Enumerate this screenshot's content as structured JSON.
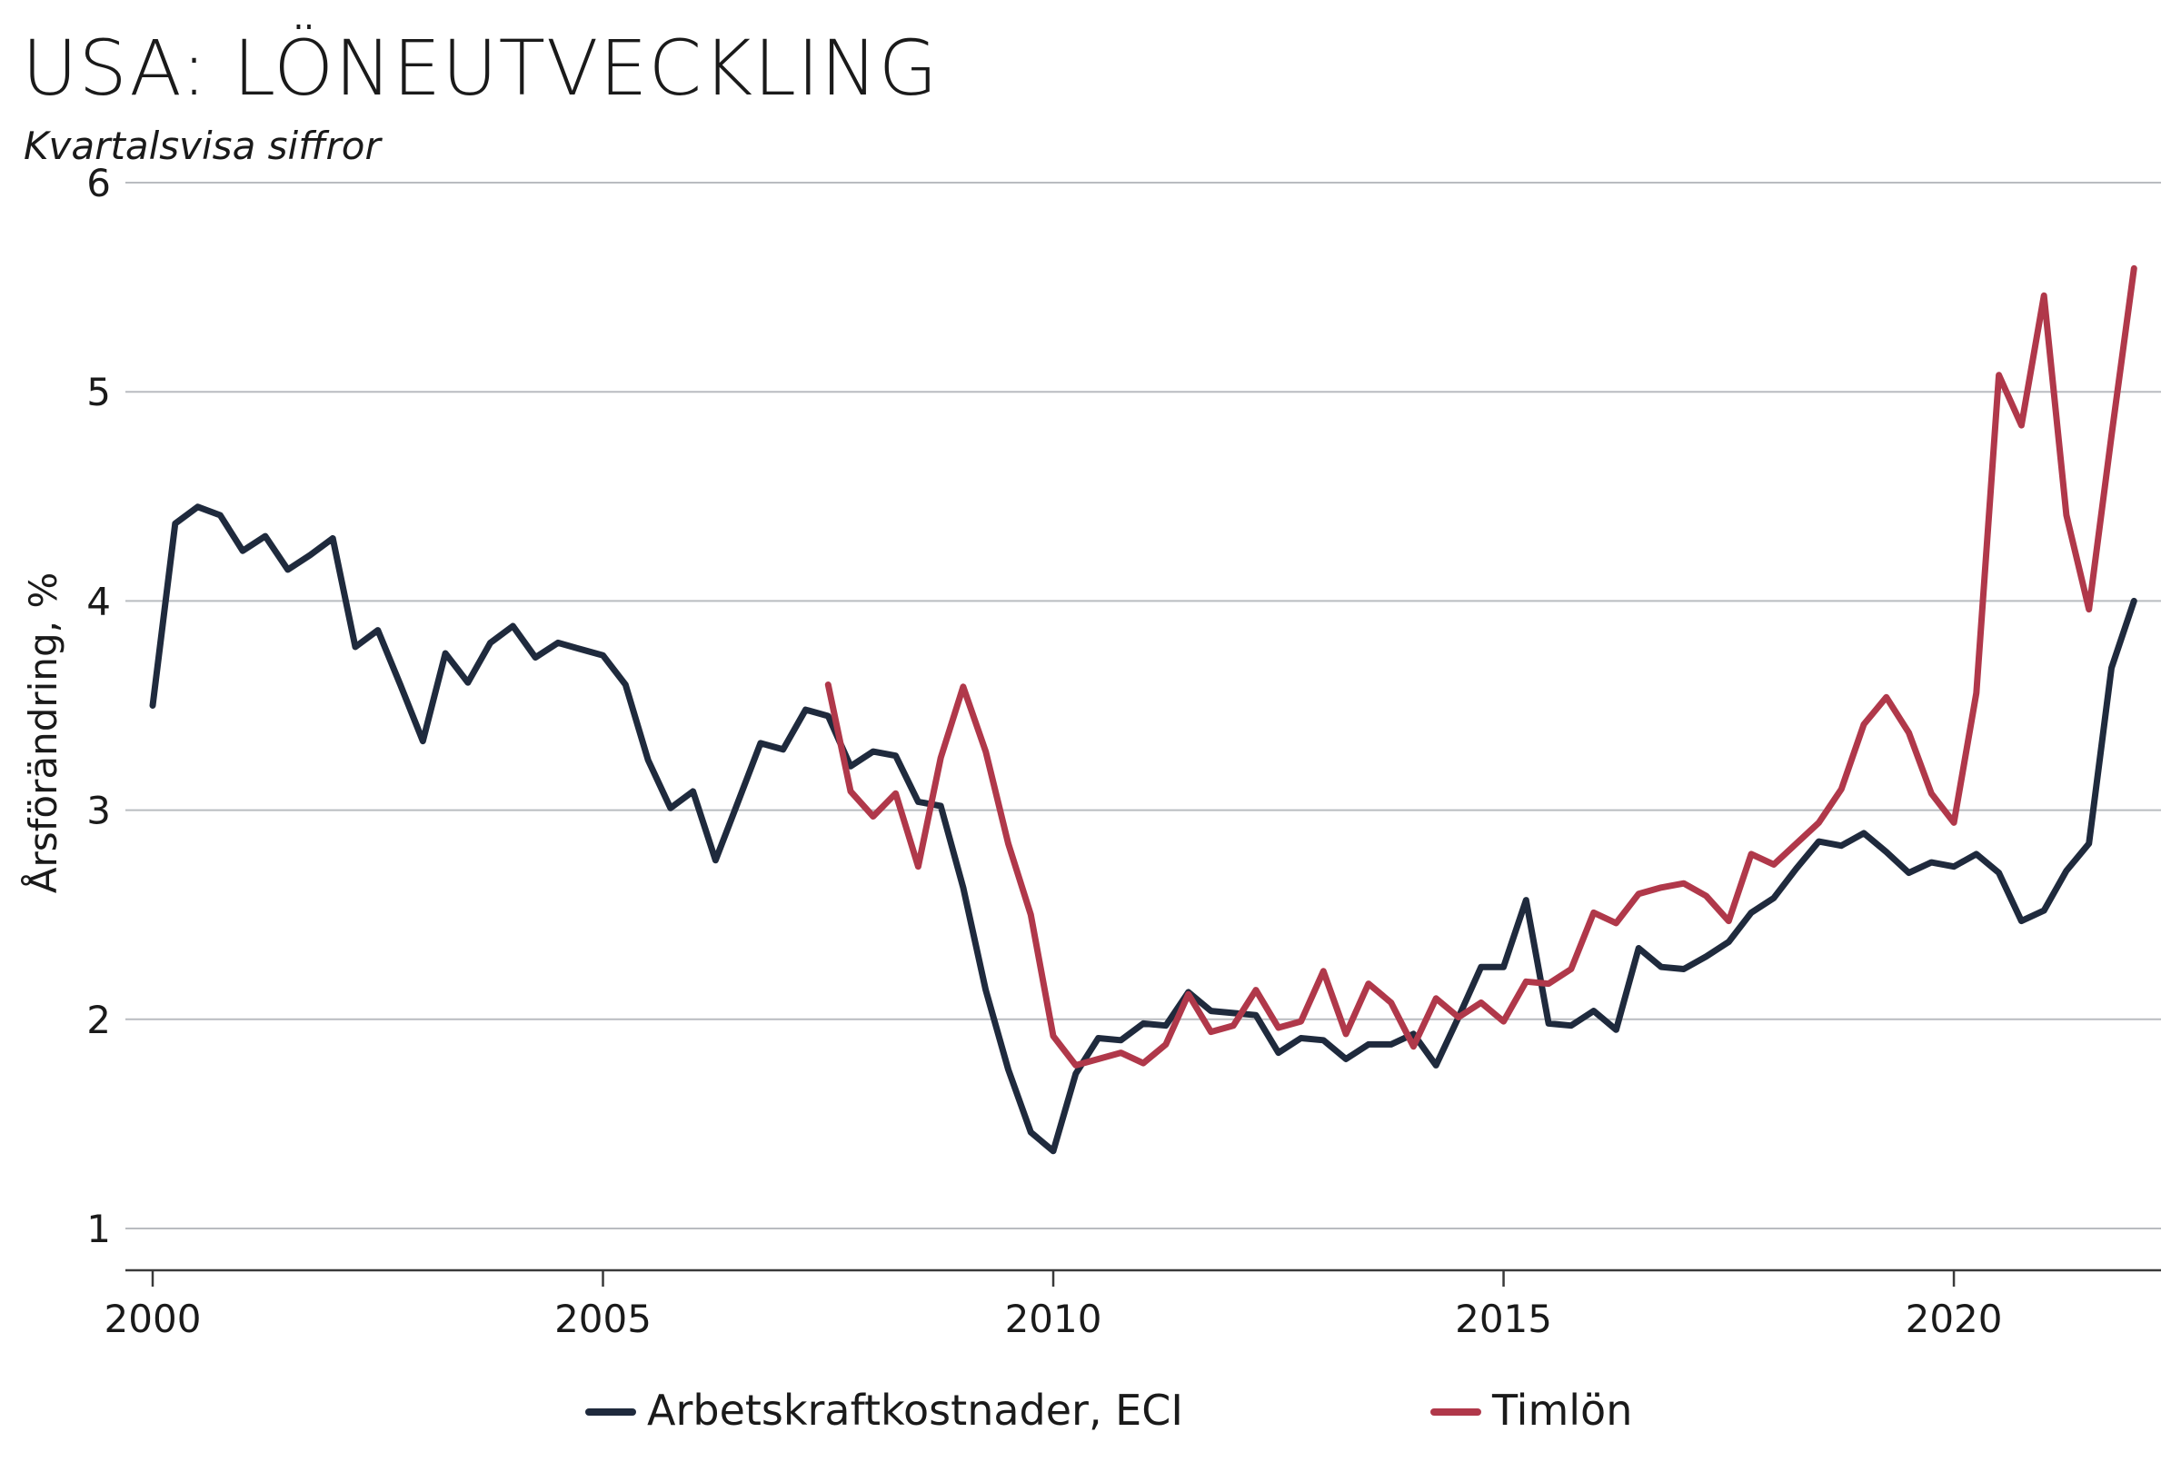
{
  "chart_data": {
    "type": "line",
    "title": "USA: LÖNEUTVECKLING",
    "subtitle": "Kvartalsvisa siffror",
    "xlabel": "",
    "ylabel": "Årsförändring, %",
    "xlim": [
      2000,
      2022.3
    ],
    "ylim": [
      0.8,
      6.2
    ],
    "yticks": [
      1,
      2,
      3,
      4,
      5,
      6
    ],
    "xticks": [
      2000,
      2005,
      2010,
      2015,
      2020
    ],
    "grid": "horizontal",
    "legend_position": "bottom",
    "series": [
      {
        "name": "Arbetskraftkostnader, ECI",
        "color": "#1f2a3d",
        "x": [
          2000.0,
          2000.25,
          2000.5,
          2000.75,
          2001.0,
          2001.25,
          2001.5,
          2001.75,
          2002.0,
          2002.25,
          2002.5,
          2002.75,
          2003.0,
          2003.25,
          2003.5,
          2003.75,
          2004.0,
          2004.25,
          2004.5,
          2004.75,
          2005.0,
          2005.25,
          2005.5,
          2005.75,
          2006.0,
          2006.25,
          2006.5,
          2006.75,
          2007.0,
          2007.25,
          2007.5,
          2007.75,
          2008.0,
          2008.25,
          2008.5,
          2008.75,
          2009.0,
          2009.25,
          2009.5,
          2009.75,
          2010.0,
          2010.25,
          2010.5,
          2010.75,
          2011.0,
          2011.25,
          2011.5,
          2011.75,
          2012.0,
          2012.25,
          2012.5,
          2012.75,
          2013.0,
          2013.25,
          2013.5,
          2013.75,
          2014.0,
          2014.25,
          2014.5,
          2014.75,
          2015.0,
          2015.25,
          2015.5,
          2015.75,
          2016.0,
          2016.25,
          2016.5,
          2016.75,
          2017.0,
          2017.25,
          2017.5,
          2017.75,
          2018.0,
          2018.25,
          2018.5,
          2018.75,
          2019.0,
          2019.25,
          2019.5,
          2019.75,
          2020.0,
          2020.25,
          2020.5,
          2020.75,
          2021.0,
          2021.25,
          2021.5,
          2021.75,
          2022.0
        ],
        "values": [
          3.5,
          4.37,
          4.45,
          4.41,
          4.24,
          4.31,
          4.15,
          4.22,
          4.3,
          3.78,
          3.86,
          3.6,
          3.33,
          3.75,
          3.61,
          3.8,
          3.88,
          3.73,
          3.8,
          3.77,
          3.74,
          3.6,
          3.24,
          3.01,
          3.09,
          2.76,
          3.04,
          3.32,
          3.29,
          3.48,
          3.45,
          3.21,
          3.28,
          3.26,
          3.04,
          3.02,
          2.63,
          2.14,
          1.76,
          1.46,
          1.37,
          1.74,
          1.91,
          1.9,
          1.98,
          1.97,
          2.13,
          2.04,
          2.03,
          2.02,
          1.84,
          1.91,
          1.9,
          1.81,
          1.88,
          1.88,
          1.93,
          1.78,
          2.01,
          2.25,
          2.25,
          2.57,
          1.98,
          1.97,
          2.04,
          1.95,
          2.34,
          2.25,
          2.24,
          2.3,
          2.37,
          2.51,
          2.58,
          2.72,
          2.85,
          2.83,
          2.89,
          2.8,
          2.7,
          2.75,
          2.73,
          2.79,
          2.7,
          2.47,
          2.52,
          2.71,
          2.84,
          3.68,
          4.0
        ]
      },
      {
        "name": "Timlön",
        "color": "#b0384a",
        "x": [
          2007.5,
          2007.75,
          2008.0,
          2008.25,
          2008.5,
          2008.75,
          2009.0,
          2009.25,
          2009.5,
          2009.75,
          2010.0,
          2010.25,
          2010.5,
          2010.75,
          2011.0,
          2011.25,
          2011.5,
          2011.75,
          2012.0,
          2012.25,
          2012.5,
          2012.75,
          2013.0,
          2013.25,
          2013.5,
          2013.75,
          2014.0,
          2014.25,
          2014.5,
          2014.75,
          2015.0,
          2015.25,
          2015.5,
          2015.75,
          2016.0,
          2016.25,
          2016.5,
          2016.75,
          2017.0,
          2017.25,
          2017.5,
          2017.75,
          2018.0,
          2018.25,
          2018.5,
          2018.75,
          2019.0,
          2019.25,
          2019.5,
          2019.75,
          2020.0,
          2020.25,
          2020.5,
          2020.75,
          2021.0,
          2021.25,
          2021.5,
          2021.75,
          2022.0
        ],
        "values": [
          3.6,
          3.09,
          2.97,
          3.08,
          2.73,
          3.25,
          3.59,
          3.28,
          2.84,
          2.5,
          1.92,
          1.78,
          1.81,
          1.84,
          1.79,
          1.88,
          2.12,
          1.94,
          1.97,
          2.14,
          1.96,
          1.99,
          2.23,
          1.93,
          2.17,
          2.08,
          1.87,
          2.1,
          2.01,
          2.08,
          1.99,
          2.18,
          2.17,
          2.24,
          2.51,
          2.46,
          2.6,
          2.63,
          2.65,
          2.59,
          2.47,
          2.79,
          2.74,
          2.84,
          2.94,
          3.1,
          3.41,
          3.54,
          3.37,
          3.08,
          2.94,
          3.56,
          5.08,
          4.84,
          5.46,
          4.41,
          3.96,
          4.79,
          5.59
        ]
      }
    ]
  }
}
